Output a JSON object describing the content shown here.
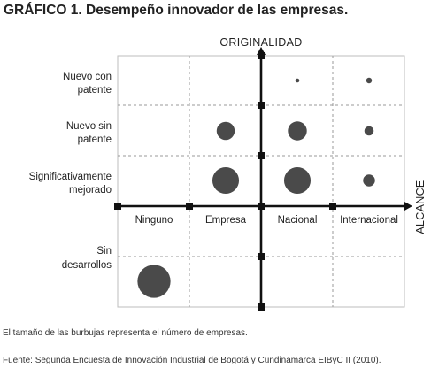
{
  "title": "GRÁFICO 1. Desempeño innovador de las empresas.",
  "chart_data": {
    "type": "scatter",
    "subtype": "bubble",
    "x_axis_label": "ALCANCE",
    "y_axis_label": "ORIGINALIDAD",
    "x_categories": [
      "Ninguno",
      "Empresa",
      "Nacional",
      "Internacional"
    ],
    "y_categories": [
      [
        "Sin",
        "desarrollos"
      ],
      [
        "Significativamente",
        "mejorado"
      ],
      [
        "Nuevo sin",
        "patente"
      ],
      [
        "Nuevo con",
        "patente"
      ]
    ],
    "points": [
      {
        "x": "Ninguno",
        "y": "Sin desarrollos",
        "size": 10
      },
      {
        "x": "Empresa",
        "y": "Significativamente mejorado",
        "size": 6.5
      },
      {
        "x": "Nacional",
        "y": "Significativamente mejorado",
        "size": 6.5
      },
      {
        "x": "Internacional",
        "y": "Significativamente mejorado",
        "size": 1.3
      },
      {
        "x": "Empresa",
        "y": "Nuevo sin patente",
        "size": 3
      },
      {
        "x": "Nacional",
        "y": "Nuevo sin patente",
        "size": 3.3
      },
      {
        "x": "Internacional",
        "y": "Nuevo sin patente",
        "size": 0.8
      },
      {
        "x": "Nacional",
        "y": "Nuevo con patente",
        "size": 0.15
      },
      {
        "x": "Internacional",
        "y": "Nuevo con patente",
        "size": 0.3
      }
    ],
    "grid": "dashed",
    "colors": {
      "bubble": "#4a4a4a",
      "axis": "#111111",
      "grid": "#9a9a9a",
      "frame": "#bdbdbd"
    }
  },
  "notes": {
    "size_note": "El tamaño de las burbujas representa el número de empresas.",
    "source": "Fuente: Segunda Encuesta de Innovación Industrial de Bogotá y Cundinamarca EIBγC II (2010)."
  }
}
